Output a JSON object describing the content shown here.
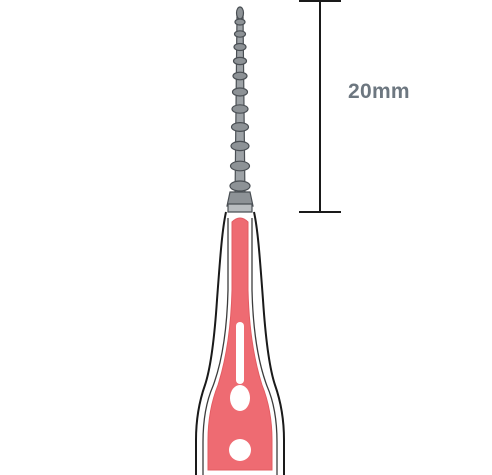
{
  "scale_bar": {
    "label": "20mm"
  },
  "colors": {
    "handle_fill": "#ee6b72",
    "tip_fill": "#8d9296",
    "tip_stroke": "#4a4f54",
    "outline": "#1a1a1a",
    "label": "#6d7780"
  },
  "icons": [
    "interdental-pick-icon",
    "scale-bar"
  ]
}
